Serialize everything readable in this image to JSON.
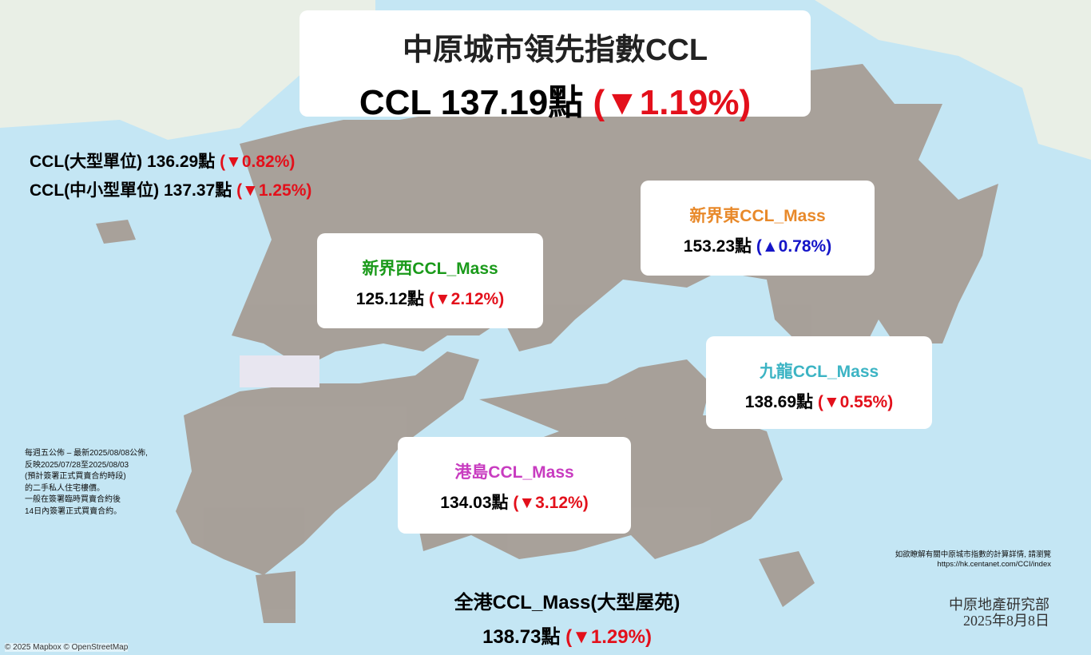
{
  "header": {
    "title": "中原城市領先指數CCL",
    "index_label": "CCL 137.19點",
    "change": "(▼1.19%)"
  },
  "sub_indices": [
    {
      "label": "CCL(大型單位) 136.29點",
      "change": "(▼0.82%)"
    },
    {
      "label": "CCL(中小型單位) 137.37點",
      "change": "(▼1.25%)"
    }
  ],
  "regions": {
    "nt_west": {
      "name": "新界西CCL_Mass",
      "value": "125.12點",
      "change": "(▼2.12%)",
      "color": "#1a9a1a"
    },
    "nt_east": {
      "name": "新界東CCL_Mass",
      "value": "153.23點",
      "change": "(▲0.78%)",
      "color": "#e8892a"
    },
    "kowloon": {
      "name": "九龍CCL_Mass",
      "value": "138.69點",
      "change": "(▼0.55%)",
      "color": "#3cb4c4"
    },
    "hk_island": {
      "name": "港島CCL_Mass",
      "value": "134.03點",
      "change": "(▼3.12%)",
      "color": "#c83cc0"
    }
  },
  "overall_mass": {
    "name": "全港CCL_Mass(大型屋苑)",
    "value": "138.73點",
    "change": "(▼1.29%)"
  },
  "note_lines": [
    "每週五公佈 – 最新2025/08/08公佈,",
    "反映2025/07/28至2025/08/03",
    "(預計簽署正式買賣合約時段)",
    "的二手私人住宅樓價。",
    "一般在簽署臨時買賣合約後",
    "14日內簽署正式買賣合約。"
  ],
  "source": {
    "text": "如欲瞭解有關中原城市指數的計算詳情, 請瀏覽",
    "url": "https://hk.centanet.com/CCI/index"
  },
  "publisher": {
    "dept": "中原地產研究部",
    "date": "2025年8月8日"
  },
  "map_credit": "© 2025 Mapbox © OpenStreetMap",
  "colors": {
    "down": "#e3101b",
    "up": "#1515c8",
    "water": "#c4e6f4",
    "land": "#a69d95"
  }
}
